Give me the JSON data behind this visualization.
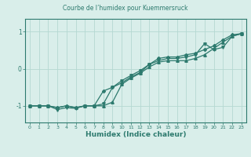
{
  "title": "Courbe de l’humidex pour Kuemmersruck",
  "xlabel": "Humidex (Indice chaleur)",
  "bg_color": "#d9eeea",
  "line_color": "#2d7a6e",
  "grid_color": "#b5d8d2",
  "spine_color": "#2d7a6e",
  "x_min": -0.5,
  "x_max": 23.5,
  "y_min": -1.45,
  "y_max": 1.35,
  "yticks": [
    -1,
    0,
    1
  ],
  "xticks": [
    0,
    1,
    2,
    3,
    4,
    5,
    6,
    7,
    8,
    9,
    10,
    11,
    12,
    13,
    14,
    15,
    16,
    17,
    18,
    19,
    20,
    21,
    22,
    23
  ],
  "line1_x": [
    0,
    1,
    2,
    3,
    4,
    5,
    6,
    7,
    8,
    9,
    10,
    11,
    12,
    13,
    14,
    15,
    16,
    17,
    18,
    19,
    20,
    21,
    22,
    23
  ],
  "line1_y": [
    -1.0,
    -1.0,
    -1.0,
    -1.05,
    -1.0,
    -1.05,
    -1.0,
    -1.0,
    -1.0,
    -0.9,
    -0.42,
    -0.25,
    -0.12,
    0.05,
    0.18,
    0.22,
    0.22,
    0.22,
    0.28,
    0.38,
    0.55,
    0.72,
    0.88,
    0.95
  ],
  "line2_x": [
    0,
    1,
    2,
    3,
    4,
    5,
    6,
    7,
    8,
    9,
    10,
    11,
    12,
    13,
    14,
    15,
    16,
    17,
    18,
    19,
    20,
    21,
    22,
    23
  ],
  "line2_y": [
    -1.0,
    -1.0,
    -1.0,
    -1.1,
    -1.05,
    -1.07,
    -1.0,
    -1.0,
    -0.95,
    -0.5,
    -0.32,
    -0.18,
    -0.05,
    0.12,
    0.22,
    0.28,
    0.28,
    0.32,
    0.38,
    0.68,
    0.52,
    0.58,
    0.88,
    0.95
  ],
  "line3_x": [
    0,
    1,
    2,
    3,
    4,
    5,
    6,
    7,
    8,
    9,
    10,
    11,
    12,
    13,
    14,
    15,
    16,
    17,
    18,
    19,
    20,
    21,
    22,
    23
  ],
  "line3_y": [
    -1.0,
    -1.0,
    -1.0,
    -1.05,
    -1.0,
    -1.05,
    -1.0,
    -1.0,
    -0.6,
    -0.5,
    -0.38,
    -0.22,
    -0.1,
    0.12,
    0.28,
    0.32,
    0.32,
    0.38,
    0.42,
    0.52,
    0.62,
    0.78,
    0.92,
    0.95
  ],
  "lw": 0.9,
  "ms": 2.5
}
